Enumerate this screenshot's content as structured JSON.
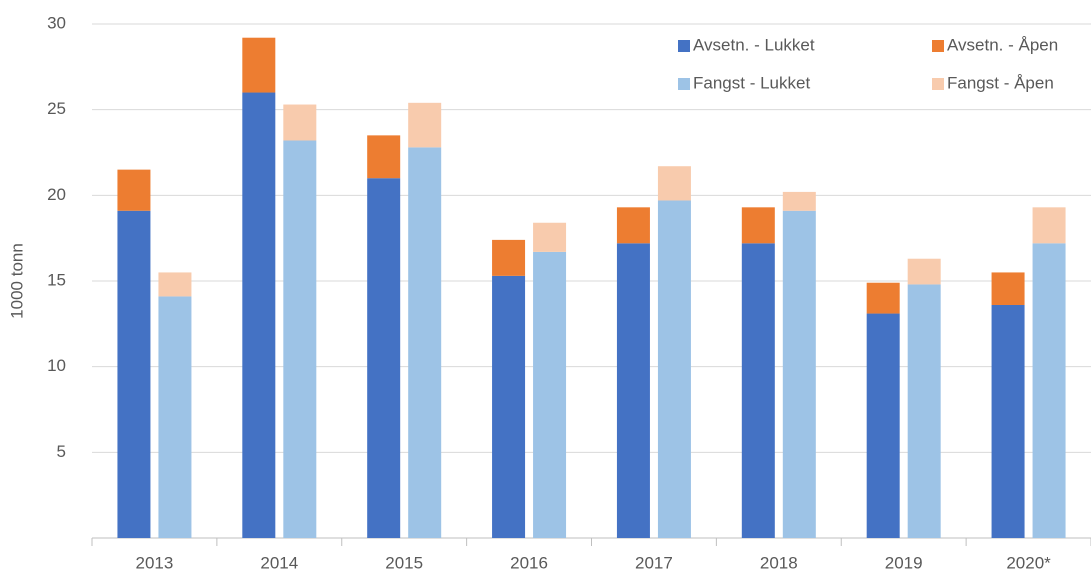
{
  "chart_data": {
    "type": "bar",
    "stacked": true,
    "y_label": "1000 tonn",
    "categories": [
      "2013",
      "2014",
      "2015",
      "2016",
      "2017",
      "2018",
      "2019",
      "2020*"
    ],
    "series": [
      {
        "name": "Avsetn. - Lukket",
        "color": "#4472c4",
        "stack": 0,
        "values": [
          19.1,
          26.0,
          21.0,
          15.3,
          17.2,
          17.2,
          13.1,
          13.6
        ]
      },
      {
        "name": "Avsetn. - Åpen",
        "color": "#ed7d31",
        "stack": 0,
        "values": [
          2.4,
          3.2,
          2.5,
          2.1,
          2.1,
          2.1,
          1.8,
          1.9
        ]
      },
      {
        "name": "Fangst - Lukket",
        "color": "#9dc3e6",
        "stack": 1,
        "values": [
          14.1,
          23.2,
          22.8,
          16.7,
          19.7,
          19.1,
          14.8,
          17.2
        ]
      },
      {
        "name": "Fangst - Åpen",
        "color": "#f8cbad",
        "stack": 1,
        "values": [
          1.4,
          2.1,
          2.6,
          1.7,
          2.0,
          1.1,
          1.5,
          2.1
        ]
      }
    ],
    "ylim": [
      0,
      30
    ],
    "yticks": [
      5,
      10,
      15,
      20,
      25,
      30
    ],
    "grid": true,
    "legend": "upper right"
  }
}
